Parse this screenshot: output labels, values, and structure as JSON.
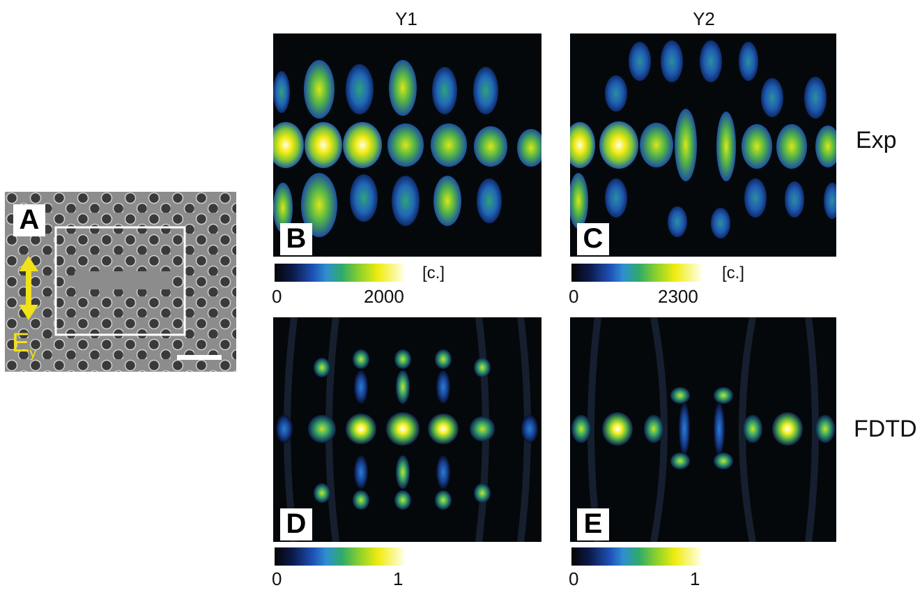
{
  "columns": {
    "y1": "Y1",
    "y2": "Y2"
  },
  "rows": {
    "exp": "Exp",
    "fdtd": "FDTD"
  },
  "panels": {
    "a": {
      "letter": "A",
      "field_symbol": "E",
      "field_subscript": "y"
    },
    "b": {
      "letter": "B"
    },
    "c": {
      "letter": "C"
    },
    "d": {
      "letter": "D"
    },
    "e": {
      "letter": "E"
    }
  },
  "colorbars": {
    "b": {
      "min": "0",
      "max": "2000",
      "unit": "[c.]"
    },
    "c": {
      "min": "0",
      "max": "2300",
      "unit": "[c.]"
    },
    "d": {
      "min": "0",
      "max": "1"
    },
    "e": {
      "min": "0",
      "max": "1"
    }
  },
  "colors": {
    "arrow": "#f2e21a",
    "frame": "#ffffff",
    "panel_bg": "#05080b"
  }
}
